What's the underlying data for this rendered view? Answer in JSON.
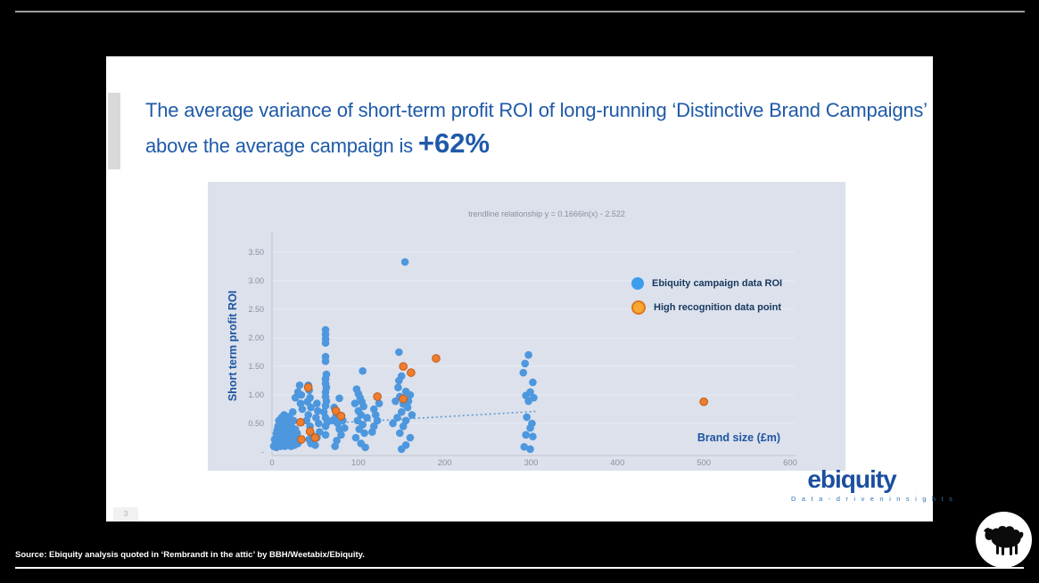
{
  "slide": {
    "title_main": "The average variance of short-term profit ROI of long-running ‘Distinctive Brand Campaigns’ above the average campaign is ",
    "title_highlight": "+62%",
    "page_number": "3",
    "logo_text": "ebiquity",
    "logo_tagline": "D a t a - d r i v e n   i n s i g h t s"
  },
  "footer": {
    "source_text": "Source: Ebiquity analysis quoted in ‘Rembrandt in the attic’ by BBH/Weetabix/Ebiquity."
  },
  "colors": {
    "title_blue": "#1f5aa8",
    "axis_title_blue": "#1e55a0",
    "legend_text_navy": "#17375e",
    "panel_background": "#dce1ec",
    "blue_point": "#4d97de",
    "orange_point": "#ed7d31",
    "logo_blue": "#1b4fa0"
  },
  "chart_data": {
    "type": "scatter",
    "annotation": "trendline relationship y = 0.1666ln(x) - 2.522",
    "xlabel": "Brand size (£m)",
    "ylabel": "Short term profit ROI",
    "xlim": [
      0,
      620
    ],
    "ylim": [
      0,
      3.5
    ],
    "grid": "horizontal-faint",
    "legend_position": "inside-right",
    "xticks": [
      0,
      100,
      200,
      300,
      400,
      500,
      600
    ],
    "yticks": [
      0,
      0.5,
      1,
      1.5,
      2,
      2.5,
      3,
      3.5
    ],
    "ytick_labels": [
      "-",
      "0.50",
      "1.00",
      "1.50",
      "2.00",
      "2.50",
      "3.00",
      "3.50"
    ],
    "legend": [
      {
        "label": "Ebiquity campaign data ROI",
        "color": "#3d9ceb"
      },
      {
        "label": "High recognition data point",
        "color": "#f6a832",
        "ring": "#e0751a"
      }
    ],
    "trendline": {
      "x1": 30,
      "y1": 0.47,
      "x2": 305,
      "y2": 0.71,
      "style": "dotted",
      "color": "#5b9bd5"
    },
    "series": [
      {
        "name": "Ebiquity campaign data ROI",
        "color": "#4d97de",
        "points": [
          [
            2,
            0.1
          ],
          [
            3,
            0.22
          ],
          [
            4,
            0.15
          ],
          [
            5,
            0.32
          ],
          [
            5,
            0.08
          ],
          [
            6,
            0.2
          ],
          [
            6,
            0.38
          ],
          [
            7,
            0.45
          ],
          [
            7,
            0.12
          ],
          [
            8,
            0.28
          ],
          [
            8,
            0.55
          ],
          [
            9,
            0.18
          ],
          [
            9,
            0.48
          ],
          [
            10,
            0.38
          ],
          [
            10,
            0.1
          ],
          [
            11,
            0.25
          ],
          [
            11,
            0.6
          ],
          [
            12,
            0.15
          ],
          [
            12,
            0.48
          ],
          [
            13,
            0.33
          ],
          [
            14,
            0.22
          ],
          [
            14,
            0.65
          ],
          [
            15,
            0.1
          ],
          [
            15,
            0.42
          ],
          [
            16,
            0.3
          ],
          [
            16,
            0.58
          ],
          [
            17,
            0.18
          ],
          [
            18,
            0.5
          ],
          [
            18,
            0.25
          ],
          [
            19,
            0.12
          ],
          [
            20,
            0.35
          ],
          [
            20,
            0.62
          ],
          [
            21,
            0.22
          ],
          [
            22,
            0.45
          ],
          [
            22,
            0.1
          ],
          [
            23,
            0.3
          ],
          [
            24,
            0.18
          ],
          [
            24,
            0.7
          ],
          [
            25,
            0.55
          ],
          [
            25,
            0.28
          ],
          [
            26,
            0.12
          ],
          [
            27,
            0.4
          ],
          [
            28,
            0.22
          ],
          [
            29,
            0.33
          ],
          [
            30,
            0.15
          ],
          [
            27,
            0.95
          ],
          [
            30,
            1.05
          ],
          [
            32,
            1.17
          ],
          [
            33,
            0.85
          ],
          [
            35,
            0.75
          ],
          [
            34,
            1.0
          ],
          [
            42,
            1.17
          ],
          [
            43,
            1.08
          ],
          [
            44,
            0.95
          ],
          [
            41,
            0.88
          ],
          [
            45,
            0.78
          ],
          [
            42,
            0.65
          ],
          [
            40,
            0.55
          ],
          [
            44,
            0.45
          ],
          [
            46,
            0.3
          ],
          [
            43,
            0.22
          ],
          [
            45,
            0.15
          ],
          [
            52,
            0.85
          ],
          [
            53,
            0.72
          ],
          [
            51,
            0.6
          ],
          [
            54,
            0.5
          ],
          [
            55,
            0.35
          ],
          [
            52,
            0.25
          ],
          [
            50,
            0.12
          ],
          [
            62,
            2.14
          ],
          [
            62,
            2.06
          ],
          [
            62,
            1.98
          ],
          [
            62,
            1.91
          ],
          [
            62,
            1.67
          ],
          [
            62,
            1.59
          ],
          [
            63,
            1.36
          ],
          [
            62,
            1.28
          ],
          [
            62,
            1.2
          ],
          [
            63,
            1.13
          ],
          [
            62,
            1.05
          ],
          [
            62,
            0.97
          ],
          [
            63,
            0.89
          ],
          [
            62,
            0.81
          ],
          [
            62,
            0.6
          ],
          [
            62,
            0.45
          ],
          [
            62,
            0.3
          ],
          [
            60,
            0.7
          ],
          [
            64,
            0.52
          ],
          [
            70,
            0.55
          ],
          [
            72,
            0.78
          ],
          [
            74,
            0.62
          ],
          [
            76,
            0.5
          ],
          [
            78,
            0.4
          ],
          [
            78,
            0.94
          ],
          [
            80,
            0.3
          ],
          [
            75,
            0.2
          ],
          [
            73,
            0.1
          ],
          [
            82,
            0.55
          ],
          [
            84,
            0.42
          ],
          [
            96,
            0.85
          ],
          [
            97,
            0.25
          ],
          [
            98,
            1.1
          ],
          [
            99,
            0.55
          ],
          [
            100,
            1.02
          ],
          [
            100,
            0.72
          ],
          [
            101,
            0.4
          ],
          [
            102,
            0.95
          ],
          [
            103,
            0.65
          ],
          [
            103,
            0.15
          ],
          [
            104,
            0.88
          ],
          [
            105,
            1.42
          ],
          [
            105,
            0.48
          ],
          [
            106,
            0.8
          ],
          [
            107,
            0.33
          ],
          [
            108,
            0.08
          ],
          [
            110,
            0.6
          ],
          [
            116,
            0.35
          ],
          [
            118,
            0.75
          ],
          [
            118,
            0.45
          ],
          [
            120,
            0.65
          ],
          [
            122,
            0.55
          ],
          [
            124,
            0.85
          ],
          [
            140,
            0.5
          ],
          [
            143,
            0.89
          ],
          [
            145,
            0.6
          ],
          [
            146,
            1.13
          ],
          [
            147,
            1.75
          ],
          [
            147,
            1.25
          ],
          [
            148,
            0.97
          ],
          [
            148,
            0.33
          ],
          [
            150,
            1.33
          ],
          [
            150,
            0.7
          ],
          [
            150,
            0.05
          ],
          [
            152,
            0.84
          ],
          [
            152,
            0.45
          ],
          [
            154,
            3.33
          ],
          [
            155,
            1.06
          ],
          [
            155,
            0.55
          ],
          [
            155,
            0.12
          ],
          [
            157,
            0.78
          ],
          [
            158,
            0.89
          ],
          [
            160,
            1.0
          ],
          [
            160,
            0.25
          ],
          [
            162,
            0.65
          ],
          [
            291,
            1.39
          ],
          [
            292,
            0.09
          ],
          [
            293,
            1.55
          ],
          [
            294,
            0.99
          ],
          [
            294,
            0.3
          ],
          [
            295,
            0.61
          ],
          [
            297,
            1.7
          ],
          [
            297,
            0.89
          ],
          [
            299,
            1.05
          ],
          [
            299,
            0.42
          ],
          [
            299,
            0.05
          ],
          [
            301,
            0.5
          ],
          [
            302,
            1.22
          ],
          [
            302,
            0.27
          ],
          [
            303,
            0.95
          ]
        ]
      },
      {
        "name": "High recognition data point",
        "color": "#ed7d31",
        "ring": "#c55a11",
        "points": [
          [
            33,
            0.52
          ],
          [
            34,
            0.22
          ],
          [
            42,
            1.13
          ],
          [
            44,
            0.36
          ],
          [
            50,
            0.25
          ],
          [
            74,
            0.72
          ],
          [
            80,
            0.63
          ],
          [
            122,
            0.97
          ],
          [
            152,
            1.5
          ],
          [
            152,
            0.93
          ],
          [
            161,
            1.39
          ],
          [
            190,
            1.64
          ],
          [
            500,
            0.88
          ]
        ]
      }
    ]
  }
}
